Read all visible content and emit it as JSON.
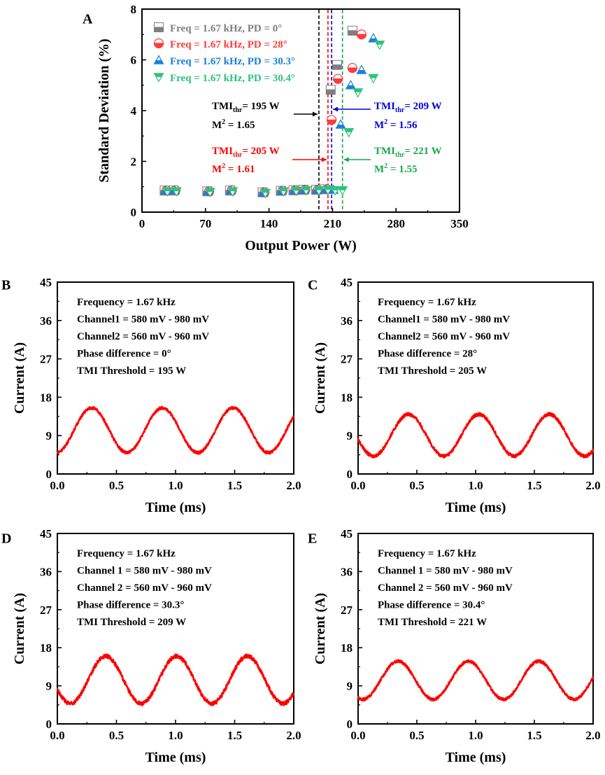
{
  "colors": {
    "pd0": "#7f7f7f",
    "pd28": "#ff3b3b",
    "pd303": "#1a7fdf",
    "pd304": "#2ec27e",
    "v195": "#000000",
    "v205": "#ff0000",
    "v209": "#0000dd",
    "v221": "#19a84c",
    "trace": "#ff0000"
  },
  "chart_data": [
    {
      "id": "A",
      "panel_label": "A",
      "type": "scatter",
      "title": "",
      "xlabel": "Output Power (W)",
      "ylabel": "Standard Deviation (%)",
      "xlim": [
        0,
        350
      ],
      "ylim": [
        0,
        8
      ],
      "xticks": [
        0,
        70,
        140,
        210,
        280,
        350
      ],
      "yticks": [
        0,
        2,
        4,
        6,
        8
      ],
      "legend_position": "top-left",
      "series": [
        {
          "name": "Freq = 1.67 kHz, PD = 0°",
          "marker": "square",
          "color_key": "pd0",
          "x": [
            25,
            35,
            72,
            97,
            133,
            153,
            167,
            178,
            192,
            200,
            208,
            215,
            232
          ],
          "y": [
            0.85,
            0.85,
            0.82,
            0.85,
            0.78,
            0.84,
            0.86,
            0.88,
            0.88,
            0.9,
            4.82,
            5.8,
            7.15
          ]
        },
        {
          "name": "Freq = 1.67 kHz, PD = 28°",
          "marker": "circle",
          "color_key": "pd28",
          "x": [
            27,
            37,
            74,
            99,
            135,
            155,
            169,
            180,
            194,
            204,
            209,
            216,
            232,
            242
          ],
          "y": [
            0.85,
            0.86,
            0.82,
            0.86,
            0.78,
            0.84,
            0.86,
            0.88,
            0.88,
            0.9,
            3.63,
            5.25,
            5.68,
            7.0
          ]
        },
        {
          "name": "Freq = 1.67 kHz, PD = 30.3°",
          "marker": "triangle-up",
          "color_key": "pd303",
          "x": [
            26,
            36,
            73,
            98,
            134,
            154,
            168,
            179,
            193,
            203,
            211,
            219,
            230,
            242,
            255
          ],
          "y": [
            0.85,
            0.86,
            0.82,
            0.86,
            0.78,
            0.84,
            0.86,
            0.88,
            0.88,
            0.9,
            0.88,
            3.45,
            5.0,
            5.6,
            6.85
          ]
        },
        {
          "name": "Freq = 1.67 kHz, PD = 30.4°",
          "marker": "triangle-down",
          "color_key": "pd304",
          "x": [
            28,
            38,
            75,
            100,
            136,
            156,
            170,
            181,
            195,
            205,
            213,
            221,
            228,
            238,
            255,
            262
          ],
          "y": [
            0.82,
            0.82,
            0.8,
            0.82,
            0.76,
            0.82,
            0.84,
            0.86,
            0.86,
            0.88,
            0.86,
            0.86,
            3.15,
            4.72,
            5.28,
            6.6
          ]
        }
      ],
      "thresholds": [
        {
          "x": 195,
          "color_key": "v195",
          "arrow_to": "line",
          "arrow_from": "left",
          "tmi_main": "TMI",
          "tmi_sub": "thr",
          "tmi_value": "= 195 W",
          "m_main": "M",
          "m_sup": "2",
          "m_value": " = 1.65"
        },
        {
          "x": 205,
          "color_key": "v205",
          "arrow_to": "line",
          "arrow_from": "left",
          "tmi_main": "TMI",
          "tmi_sub": "thr",
          "tmi_value": "= 205 W",
          "m_main": "M",
          "m_sup": "2",
          "m_value": " = 1.61"
        },
        {
          "x": 209,
          "color_key": "v209",
          "arrow_to": "line",
          "arrow_from": "right",
          "tmi_main": "TMI",
          "tmi_sub": "thr",
          "tmi_value": "= 209 W",
          "m_main": "M",
          "m_sup": "2",
          "m_value": " = 1.56"
        },
        {
          "x": 221,
          "color_key": "v221",
          "arrow_to": "line",
          "arrow_from": "right",
          "tmi_main": "TMI",
          "tmi_sub": "thr",
          "tmi_value": "= 221 W",
          "m_main": "M",
          "m_sup": "2",
          "m_value": " = 1.55"
        }
      ]
    },
    {
      "id": "B",
      "panel_label": "B",
      "type": "line",
      "xlabel": "Time (ms)",
      "ylabel": "Current (A)",
      "xlim": [
        0,
        2
      ],
      "ylim": [
        0,
        45
      ],
      "xticks": [
        0.0,
        0.5,
        1.0,
        1.5,
        2.0
      ],
      "xticklabels": [
        "0.0",
        "0.5",
        "1.0",
        "1.5",
        "2.0"
      ],
      "yticks": [
        0,
        9,
        18,
        27,
        36,
        45
      ],
      "annotations": [
        "Frequency = 1.67 kHz",
        "Channel1 = 580 mV - 980 mV",
        "Channel2 = 560 mV - 960 mV",
        "Phase difference = 0°",
        "TMI Threshold = 195 W"
      ],
      "signal": {
        "frequency_khz": 1.67,
        "min_a": 5.0,
        "max_a": 15.5,
        "first_peak_ms": 0.29,
        "noise_a": 0.35
      }
    },
    {
      "id": "C",
      "panel_label": "C",
      "type": "line",
      "xlabel": "Time (ms)",
      "ylabel": "Current (A)",
      "xlim": [
        0,
        2
      ],
      "ylim": [
        0,
        45
      ],
      "xticks": [
        0.0,
        0.5,
        1.0,
        1.5,
        2.0
      ],
      "xticklabels": [
        "0.0",
        "0.5",
        "1.0",
        "1.5",
        "2.0"
      ],
      "yticks": [
        0,
        9,
        18,
        27,
        36,
        45
      ],
      "annotations": [
        "Frequency = 1.67 kHz",
        "Channel1 = 580 mV - 980 mV",
        "Channel2 = 560 mV - 960 mV",
        "Phase difference = 28°",
        "TMI Threshold = 205 W"
      ],
      "signal": {
        "frequency_khz": 1.67,
        "min_a": 4.2,
        "max_a": 14.0,
        "first_peak_ms": 0.43,
        "noise_a": 0.4
      }
    },
    {
      "id": "D",
      "panel_label": "D",
      "type": "line",
      "xlabel": "Time (ms)",
      "ylabel": "Current (A)",
      "xlim": [
        0,
        2
      ],
      "ylim": [
        0,
        45
      ],
      "xticks": [
        0.0,
        0.5,
        1.0,
        1.5,
        2.0
      ],
      "xticklabels": [
        "0.0",
        "0.5",
        "1.0",
        "1.5",
        "2.0"
      ],
      "yticks": [
        0,
        9,
        18,
        27,
        36,
        45
      ],
      "annotations": [
        "Frequency = 1.67 kHz",
        "Channel 1 = 580 mV - 980 mV",
        "Channel 2 = 560 mV - 960 mV",
        "Phase difference = 30.3°",
        "TMI Threshold = 209 W"
      ],
      "signal": {
        "frequency_khz": 1.67,
        "min_a": 4.8,
        "max_a": 16.0,
        "first_peak_ms": 0.41,
        "noise_a": 0.5
      }
    },
    {
      "id": "E",
      "panel_label": "E",
      "type": "line",
      "xlabel": "Time (ms)",
      "ylabel": "Current (A)",
      "xlim": [
        0,
        2
      ],
      "ylim": [
        0,
        45
      ],
      "xticks": [
        0.0,
        0.5,
        1.0,
        1.5,
        2.0
      ],
      "xticklabels": [
        "0.0",
        "0.5",
        "1.0",
        "1.5",
        "2.0"
      ],
      "yticks": [
        0,
        9,
        18,
        27,
        36,
        45
      ],
      "annotations": [
        "Frequency = 1.67 kHz",
        "Channel 1 = 580 mV - 980 mV",
        "Channel 2 = 560 mV - 960 mV",
        "Phase difference = 30.4°",
        "TMI Threshold = 221 W"
      ],
      "signal": {
        "frequency_khz": 1.67,
        "min_a": 5.8,
        "max_a": 14.8,
        "first_peak_ms": 0.34,
        "noise_a": 0.35
      }
    }
  ]
}
